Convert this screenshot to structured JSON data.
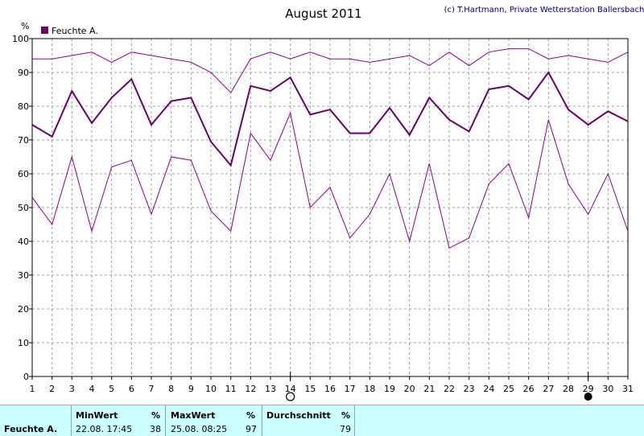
{
  "chart_data": {
    "type": "line",
    "title": "August 2011",
    "copyright": "(c) T.Hartmann, Private Wetterstation Ballersbach",
    "ylabel": "%",
    "ylim": [
      0,
      100
    ],
    "yticks": [
      0,
      10,
      20,
      30,
      40,
      50,
      60,
      70,
      80,
      90,
      100
    ],
    "grid": true,
    "legend": "top-left",
    "x": [
      1,
      2,
      3,
      4,
      5,
      6,
      7,
      8,
      9,
      10,
      11,
      12,
      13,
      14,
      15,
      16,
      17,
      18,
      19,
      20,
      21,
      22,
      23,
      24,
      25,
      26,
      27,
      28,
      29,
      30,
      31
    ],
    "series": [
      {
        "name": "Feuchte A.",
        "role": "mean",
        "color": "#660066",
        "values": [
          74.5,
          71,
          84.5,
          75,
          82.5,
          88,
          74.5,
          81.5,
          82.5,
          69.5,
          62.5,
          86,
          84.5,
          88.5,
          77.5,
          79,
          72,
          72,
          79.5,
          71.5,
          82.5,
          76,
          72.5,
          85,
          86,
          82,
          90,
          79,
          74.5,
          78.5,
          75.5
        ]
      },
      {
        "role": "max",
        "color": "#880088",
        "values": [
          94,
          94,
          95,
          96,
          93,
          96,
          95,
          94,
          93,
          90,
          84,
          94,
          96,
          94,
          96,
          94,
          94,
          93,
          94,
          95,
          92,
          96,
          92,
          96,
          97,
          97,
          94,
          95,
          94,
          93,
          96
        ]
      },
      {
        "role": "min",
        "color": "#880088",
        "values": [
          53,
          45,
          65,
          43,
          62,
          64,
          48,
          65,
          64,
          49,
          43,
          72,
          64,
          78,
          50,
          56,
          41,
          48,
          60,
          40,
          63,
          38,
          41,
          57,
          63,
          47,
          76,
          57,
          48,
          60,
          43
        ]
      }
    ],
    "markers": [
      {
        "day": 14,
        "symbol": "full-moon"
      },
      {
        "day": 29,
        "symbol": "new-moon"
      }
    ]
  },
  "stats": {
    "series_label": "Feuchte A.",
    "min_header": "MinWert",
    "max_header": "MaxWert",
    "avg_header": "Durchschnitt",
    "unit": "%",
    "min_when": "22.08.  17:45",
    "min_value": "38",
    "max_when": "25.08.  08:25",
    "max_value": "97",
    "avg_value": "79"
  }
}
